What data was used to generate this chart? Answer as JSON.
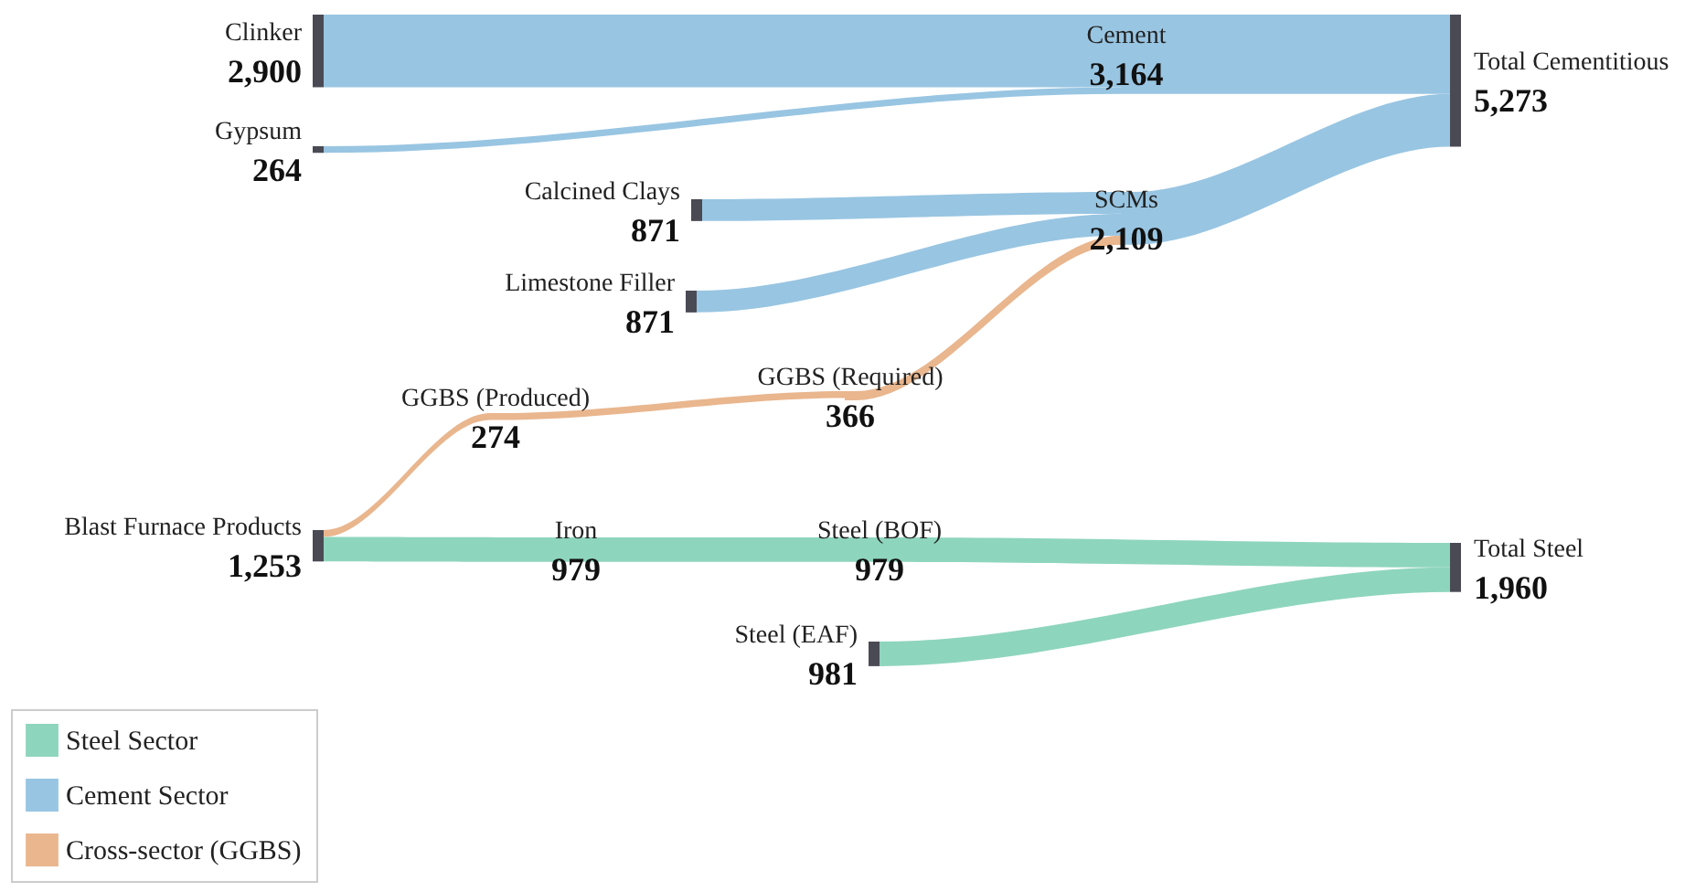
{
  "chart_data": {
    "type": "other",
    "categories": [
      "Clinker",
      "Gypsum",
      "Cement",
      "Total Cementitious",
      "Calcined Clays",
      "Limestone Filler",
      "SCMs",
      "GGBS (Produced)",
      "GGBS (Required)",
      "Blast Furnace Products",
      "Iron",
      "Steel (BOF)",
      "Total Steel",
      "Steel (EAF)"
    ],
    "series": [
      {
        "name": "Steel Sector",
        "color": "#8ed5bd",
        "values": [
          null,
          null,
          null,
          null,
          null,
          null,
          null,
          null,
          null,
          1253,
          979,
          979,
          1960,
          981
        ],
        "value_labels": [
          null,
          null,
          null,
          null,
          null,
          null,
          null,
          null,
          null,
          "1,253",
          "979",
          "979",
          "1,960",
          "981"
        ]
      },
      {
        "name": "Cement Sector",
        "color": "#98c5e2",
        "values": [
          2900,
          264,
          3164,
          5273,
          871,
          871,
          2109,
          null,
          null,
          null,
          null,
          null,
          null,
          null
        ],
        "value_labels": [
          "2,900",
          "264",
          "3,164",
          "5,273",
          "871",
          "871",
          "2,109",
          null,
          null,
          null,
          null,
          null,
          null,
          null
        ]
      },
      {
        "name": "Cross-sector (GGBS)",
        "color": "#e9b68e",
        "values": [
          null,
          null,
          null,
          null,
          null,
          null,
          null,
          274,
          366,
          null,
          null,
          null,
          null,
          null
        ],
        "value_labels": [
          null,
          null,
          null,
          null,
          null,
          null,
          null,
          "274",
          "366",
          null,
          null,
          null,
          null,
          null
        ]
      }
    ],
    "legend": "bottom left"
  }
}
